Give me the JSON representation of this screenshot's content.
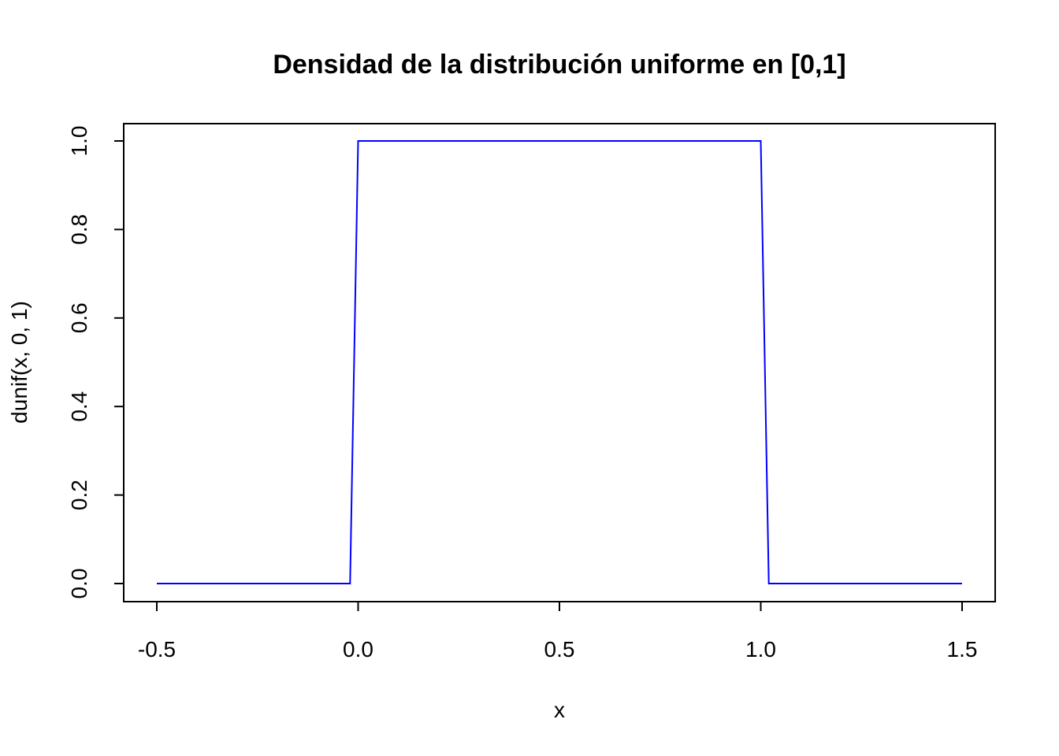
{
  "chart_data": {
    "type": "line",
    "title": "Densidad de la distribución uniforme en [0,1]",
    "xlabel": "x",
    "ylabel": "dunif(x, 0, 1)",
    "xlim": [
      -0.5,
      1.5
    ],
    "ylim": [
      0,
      1
    ],
    "x_ticks": [
      "-0.5",
      "0.0",
      "0.5",
      "1.0",
      "1.5"
    ],
    "x_tick_values": [
      -0.5,
      0.0,
      0.5,
      1.0,
      1.5
    ],
    "y_ticks": [
      "0.0",
      "0.2",
      "0.4",
      "0.6",
      "0.8",
      "1.0"
    ],
    "y_tick_values": [
      0.0,
      0.2,
      0.4,
      0.6,
      0.8,
      1.0
    ],
    "grid": false,
    "series": [
      {
        "color": "#0000ff",
        "x": [
          -0.5,
          -0.02,
          0.0,
          1.0,
          1.02,
          1.5
        ],
        "y": [
          0,
          0,
          1,
          1,
          0,
          0
        ]
      }
    ]
  }
}
